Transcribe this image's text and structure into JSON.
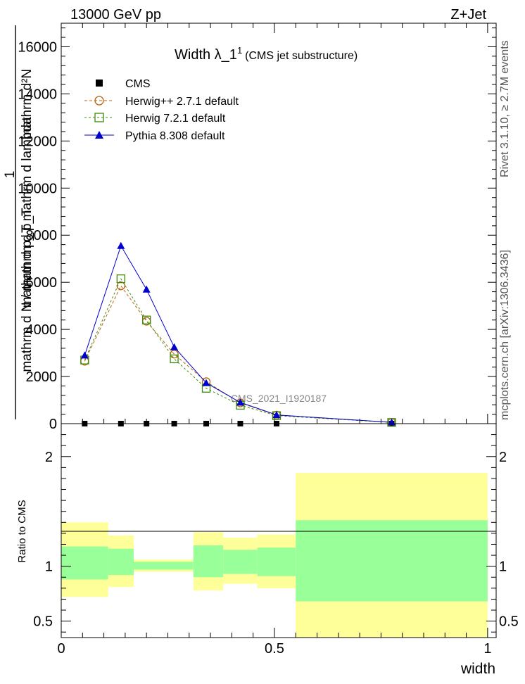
{
  "header": {
    "left": "13000 GeV pp",
    "right": "Z+Jet"
  },
  "side_labels": {
    "rivet": "Rivet 3.1.10, ≥ 2.7M events",
    "mcplots": "mcplots.cern.ch [arXiv:1306.3436]"
  },
  "colors": {
    "cms": "#000000",
    "herwigpp": "#b8620d",
    "herwig7": "#3c8c0a",
    "pythia": "#0000cc",
    "band_inner": "#99ff99",
    "band_outer": "#ffff99"
  },
  "chart_data": [
    {
      "type": "line",
      "title": "Width λ_1",
      "title_sup": "1",
      "subtitle": "(CMS jet substructure)",
      "watermark": "CMS_2021_I1920187",
      "ylabel_num": "mathrm d²N",
      "ylabel_den": "mathrm d p_T mathrm d lambda",
      "ylabel_sub": "T",
      "ylabel_frac_num": "1",
      "ylabel_frac_den": "mathrm d N / mathrm d p_T",
      "yticks": [
        "0",
        "2000",
        "4000",
        "6000",
        "8000",
        "10000",
        "12000",
        "14000",
        "16000"
      ],
      "ylim": [
        0,
        17000
      ],
      "xlim": [
        0,
        1.02
      ],
      "series": [
        {
          "name": "CMS",
          "marker": "square-filled",
          "x": [
            0.055,
            0.14,
            0.2,
            0.265,
            0.34,
            0.42,
            0.505,
            0.775
          ],
          "y": [
            0,
            0,
            0,
            0,
            0,
            0,
            0,
            0
          ]
        },
        {
          "name": "Herwig++ 2.7.1 default",
          "marker": "circle-open",
          "x": [
            0.055,
            0.14,
            0.2,
            0.265,
            0.34,
            0.42,
            0.505,
            0.775
          ],
          "y": [
            2650,
            5850,
            4350,
            2950,
            1780,
            880,
            360,
            50
          ]
        },
        {
          "name": "Herwig 7.2.1 default",
          "marker": "square-open",
          "x": [
            0.055,
            0.14,
            0.2,
            0.265,
            0.34,
            0.42,
            0.505,
            0.775
          ],
          "y": [
            2700,
            6150,
            4400,
            2750,
            1500,
            780,
            340,
            50
          ]
        },
        {
          "name": "Pythia 8.308 default",
          "marker": "triangle-filled",
          "x": [
            0.055,
            0.14,
            0.2,
            0.265,
            0.34,
            0.42,
            0.505,
            0.775
          ],
          "y": [
            2900,
            7550,
            5700,
            3250,
            1730,
            900,
            370,
            55
          ]
        }
      ]
    },
    {
      "type": "area",
      "ylabel": "Ratio to CMS",
      "xlabel": "width",
      "xlim": [
        0,
        1.02
      ],
      "ylim": [
        0.35,
        2.3
      ],
      "xticks": [
        "0",
        "0.5",
        "1"
      ],
      "yticks": [
        "0.5",
        "1",
        "2"
      ],
      "bins": [
        {
          "lo": 0.0,
          "hi": 0.11,
          "inner": [
            0.88,
            1.18
          ],
          "outer": [
            0.72,
            1.4
          ]
        },
        {
          "lo": 0.11,
          "hi": 0.17,
          "inner": [
            0.92,
            1.16
          ],
          "outer": [
            0.81,
            1.28
          ]
        },
        {
          "lo": 0.17,
          "hi": 0.31,
          "inner": [
            0.97,
            1.04
          ],
          "outer": [
            0.95,
            1.06
          ]
        },
        {
          "lo": 0.31,
          "hi": 0.38,
          "inner": [
            0.9,
            1.19
          ],
          "outer": [
            0.78,
            1.31
          ]
        },
        {
          "lo": 0.38,
          "hi": 0.46,
          "inner": [
            0.93,
            1.15
          ],
          "outer": [
            0.84,
            1.26
          ]
        },
        {
          "lo": 0.46,
          "hi": 0.55,
          "inner": [
            0.91,
            1.17
          ],
          "outer": [
            0.8,
            1.29
          ]
        },
        {
          "lo": 0.55,
          "hi": 1.0,
          "inner": [
            0.68,
            1.42
          ],
          "outer": [
            0.35,
            1.85
          ]
        }
      ]
    }
  ]
}
